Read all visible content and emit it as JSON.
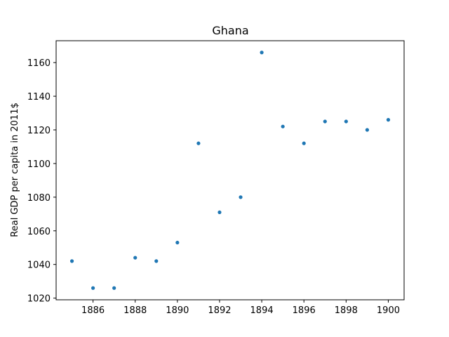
{
  "chart_data": {
    "type": "scatter",
    "title": "Ghana",
    "xlabel": "",
    "ylabel": "Real GDP per capita in 2011$",
    "x": [
      1885,
      1886,
      1887,
      1888,
      1889,
      1890,
      1891,
      1892,
      1893,
      1894,
      1895,
      1896,
      1897,
      1898,
      1899,
      1900
    ],
    "y": [
      1042,
      1026,
      1026,
      1044,
      1042,
      1053,
      1112,
      1071,
      1080,
      1166,
      1122,
      1112,
      1125,
      1125,
      1120,
      1126
    ],
    "xlim": [
      1884.25,
      1900.75
    ],
    "ylim": [
      1019,
      1173
    ],
    "xticks": [
      1886,
      1888,
      1890,
      1892,
      1894,
      1896,
      1898,
      1900
    ],
    "yticks": [
      1020,
      1040,
      1060,
      1080,
      1100,
      1120,
      1140,
      1160
    ],
    "marker_color": "#1f77b4",
    "grid": false
  }
}
